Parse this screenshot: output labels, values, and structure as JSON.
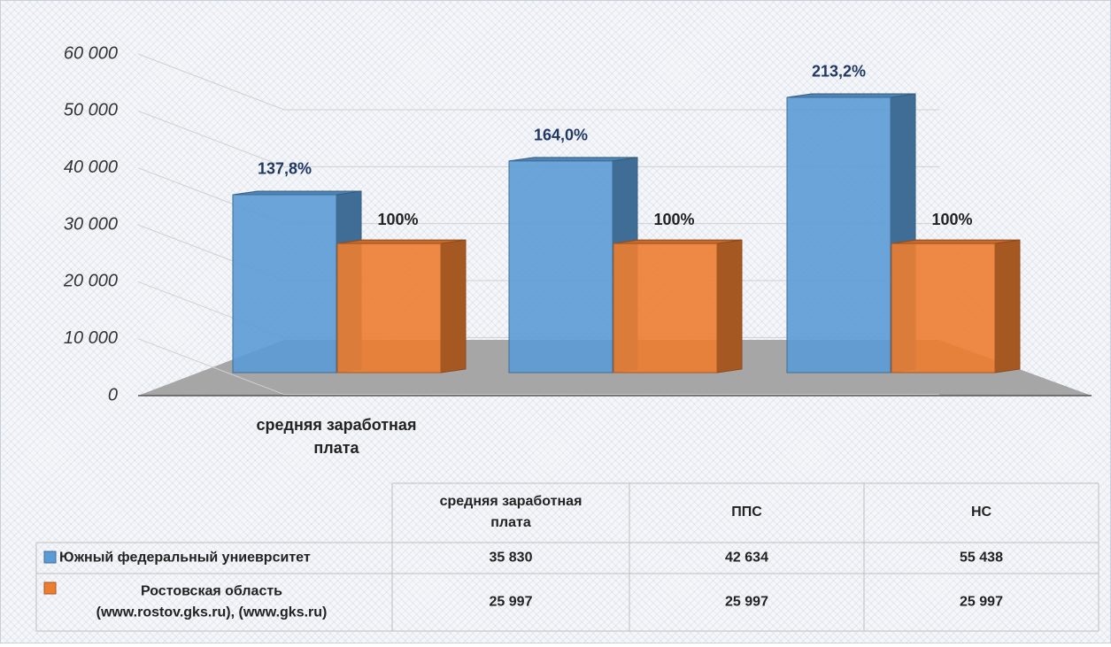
{
  "chart_data": {
    "type": "bar3d",
    "categories": [
      "средняя заработная плата",
      "ППС",
      "НС"
    ],
    "series": [
      {
        "name": "Южный федеральный униеврситет",
        "color": "#5b9bd5",
        "values": [
          35830,
          42634,
          55438
        ],
        "value_labels": [
          "35 830",
          "42 634",
          "55 438"
        ],
        "annotations": [
          "137,8%",
          "164,0%",
          "213,2%"
        ],
        "annotation_color": "#1f3864"
      },
      {
        "name": "Ростовская область (www.rostov.gks.ru), (www.gks.ru)",
        "color": "#ed7d31",
        "values": [
          25997,
          25997,
          25997
        ],
        "value_labels": [
          "25 997",
          "25 997",
          "25 997"
        ],
        "annotations": [
          "100%",
          "100%",
          "100%"
        ],
        "annotation_color": "#222222"
      }
    ],
    "ylim": [
      0,
      60000
    ],
    "yticks": [
      {
        "value": 0,
        "label": "0"
      },
      {
        "value": 10000,
        "label": "10 000"
      },
      {
        "value": 20000,
        "label": "20 000"
      },
      {
        "value": 30000,
        "label": "30 000"
      },
      {
        "value": 40000,
        "label": "40 000"
      },
      {
        "value": 50000,
        "label": "50 000"
      },
      {
        "value": 60000,
        "label": "60 000"
      }
    ],
    "grid": true,
    "data_table": true
  }
}
